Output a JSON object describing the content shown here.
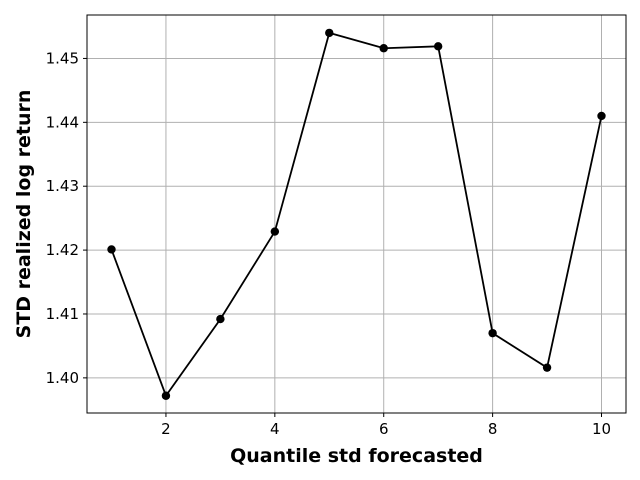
{
  "chart_data": {
    "type": "line",
    "title": "",
    "xlabel": "Quantile std forecasted",
    "ylabel": "STD realized log return",
    "x": [
      1,
      2,
      3,
      4,
      5,
      6,
      7,
      8,
      9,
      10
    ],
    "series": [
      {
        "values": [
          1.4201,
          1.3972,
          1.4092,
          1.4229,
          1.454,
          1.4516,
          1.4519,
          1.407,
          1.4016,
          1.441
        ],
        "color": "#000000",
        "marker": "circle"
      }
    ],
    "xlim": [
      0.55,
      10.45
    ],
    "ylim": [
      1.3945,
      1.4568
    ],
    "x_ticks": [
      2,
      4,
      6,
      8,
      10
    ],
    "x_tick_labels": [
      "2",
      "4",
      "6",
      "8",
      "10"
    ],
    "y_ticks": [
      1.4,
      1.41,
      1.42,
      1.43,
      1.44,
      1.45
    ],
    "y_tick_labels": [
      "1.40",
      "1.41",
      "1.42",
      "1.43",
      "1.44",
      "1.45"
    ],
    "grid": true,
    "legend": "none"
  }
}
